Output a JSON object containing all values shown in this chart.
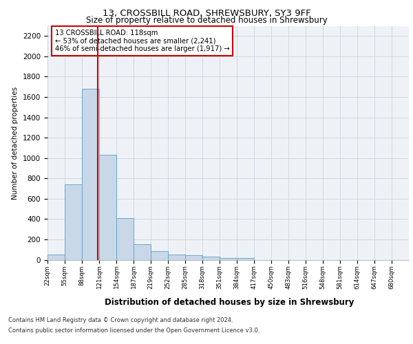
{
  "title1": "13, CROSSBILL ROAD, SHREWSBURY, SY3 9FF",
  "title2": "Size of property relative to detached houses in Shrewsbury",
  "xlabel": "Distribution of detached houses by size in Shrewsbury",
  "ylabel": "Number of detached properties",
  "bin_labels": [
    "22sqm",
    "55sqm",
    "88sqm",
    "121sqm",
    "154sqm",
    "187sqm",
    "219sqm",
    "252sqm",
    "285sqm",
    "318sqm",
    "351sqm",
    "384sqm",
    "417sqm",
    "450sqm",
    "483sqm",
    "516sqm",
    "548sqm",
    "581sqm",
    "614sqm",
    "647sqm",
    "680sqm"
  ],
  "bin_edges": [
    22,
    55,
    88,
    121,
    154,
    187,
    219,
    252,
    285,
    318,
    351,
    384,
    417,
    450,
    483,
    516,
    548,
    581,
    614,
    647,
    680
  ],
  "bar_heights": [
    50,
    740,
    1680,
    1035,
    410,
    150,
    85,
    50,
    45,
    30,
    20,
    15,
    0,
    0,
    0,
    0,
    0,
    0,
    0,
    0
  ],
  "bar_color": "#c8d8e8",
  "bar_edge_color": "#5a9fc8",
  "grid_color": "#d0d8e0",
  "vline_x": 118,
  "vline_color": "#cc0000",
  "annotation_text": "13 CROSSBILL ROAD: 118sqm\n← 53% of detached houses are smaller (2,241)\n46% of semi-detached houses are larger (1,917) →",
  "annotation_box_color": "#cc0000",
  "ylim": [
    0,
    2300
  ],
  "yticks": [
    0,
    200,
    400,
    600,
    800,
    1000,
    1200,
    1400,
    1600,
    1800,
    2000,
    2200
  ],
  "footer1": "Contains HM Land Registry data © Crown copyright and database right 2024.",
  "footer2": "Contains public sector information licensed under the Open Government Licence v3.0.",
  "bg_color": "#eef2f7"
}
